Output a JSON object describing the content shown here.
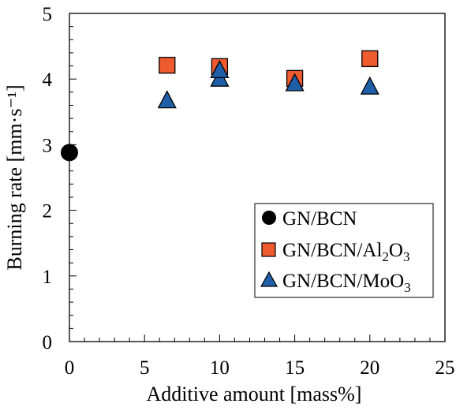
{
  "chart_data": {
    "type": "scatter",
    "xlabel": "Additive amount [mass%]",
    "ylabel": "Burning rate [mm·s⁻¹]",
    "xlim": [
      0,
      25
    ],
    "ylim": [
      0,
      5
    ],
    "x_ticks": [
      "0",
      "5",
      "10",
      "15",
      "20",
      "25"
    ],
    "y_ticks": [
      "0",
      "1",
      "2",
      "3",
      "4",
      "5"
    ],
    "grid": false,
    "legend_position": "bottom-right",
    "series": [
      {
        "name": "GN/BCN",
        "marker": "circle",
        "color": "#000000",
        "points": [
          {
            "x": 0,
            "y": 2.88
          }
        ]
      },
      {
        "name": "GN/BCN/Al2O3",
        "marker": "square",
        "color": "#ED5B2E",
        "points": [
          {
            "x": 6.5,
            "y": 4.21
          },
          {
            "x": 10,
            "y": 4.19
          },
          {
            "x": 15,
            "y": 4.01
          },
          {
            "x": 20,
            "y": 4.31
          }
        ]
      },
      {
        "name": "GN/BCN/MoO3",
        "marker": "triangle",
        "color": "#1F5FA8",
        "points": [
          {
            "x": 6.5,
            "y": 3.67
          },
          {
            "x": 10,
            "y": 4.0
          },
          {
            "x": 10,
            "y": 4.13
          },
          {
            "x": 15,
            "y": 3.93
          },
          {
            "x": 20,
            "y": 3.88
          }
        ]
      }
    ]
  }
}
